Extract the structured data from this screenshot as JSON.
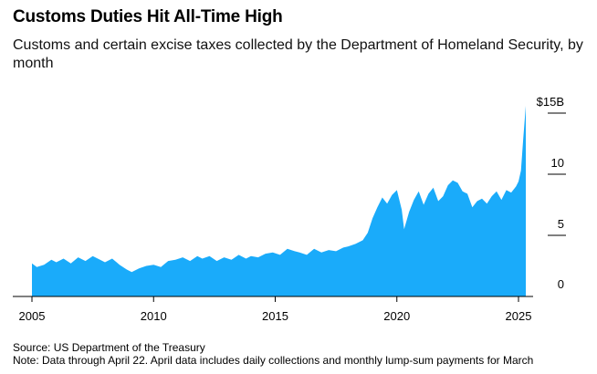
{
  "header": {
    "title": "Customs Duties Hit All-Time High",
    "subtitle": "Customs and certain excise taxes collected by the Department of Homeland Security, by month"
  },
  "footer": {
    "source": "Source: US Department of the Treasury",
    "note": "Note: Data through April 22. April data includes daily collections and monthly lump-sum payments for March"
  },
  "colors": {
    "area": "#1aabfa",
    "axis": "#000000",
    "tick": "#000000"
  },
  "chart_data": {
    "type": "area",
    "title": "Customs Duties Hit All-Time High",
    "subtitle": "Customs and certain excise taxes collected by the Department of Homeland Security, by month",
    "xlabel": "",
    "ylabel": "",
    "x_tick_labels": [
      "2005",
      "2010",
      "2015",
      "2020",
      "2025"
    ],
    "y_tick_labels": [
      "0",
      "5",
      "10",
      "$15B"
    ],
    "y_ticks": [
      0,
      5,
      10,
      15
    ],
    "ylim": [
      0,
      15
    ],
    "xlim": [
      2005.0,
      2025.3
    ],
    "grid": false,
    "legend": "none",
    "series": [
      {
        "x": [
          2005.0,
          2005.2,
          2005.5,
          2005.8,
          2006.0,
          2006.3,
          2006.6,
          2006.9,
          2007.2,
          2007.5,
          2007.8,
          2008.0,
          2008.3,
          2008.6,
          2008.9,
          2009.1,
          2009.4,
          2009.7,
          2010.0,
          2010.3,
          2010.6,
          2010.9,
          2011.2,
          2011.5,
          2011.8,
          2012.0,
          2012.3,
          2012.6,
          2012.9,
          2013.2,
          2013.5,
          2013.8,
          2014.0,
          2014.3,
          2014.6,
          2014.9,
          2015.2,
          2015.5,
          2015.8,
          2016.0,
          2016.3,
          2016.6,
          2016.9,
          2017.2,
          2017.5,
          2017.8,
          2018.0,
          2018.3,
          2018.6,
          2018.8,
          2019.0,
          2019.2,
          2019.4,
          2019.6,
          2019.8,
          2020.0,
          2020.2,
          2020.3,
          2020.5,
          2020.7,
          2020.9,
          2021.1,
          2021.3,
          2021.5,
          2021.7,
          2021.9,
          2022.1,
          2022.3,
          2022.5,
          2022.7,
          2022.9,
          2023.1,
          2023.3,
          2023.5,
          2023.7,
          2023.9,
          2024.1,
          2024.3,
          2024.5,
          2024.7,
          2024.9,
          2025.0,
          2025.1,
          2025.2,
          2025.3
        ],
        "values": [
          2.7,
          2.4,
          2.6,
          3.0,
          2.8,
          3.1,
          2.7,
          3.2,
          2.9,
          3.3,
          3.0,
          2.8,
          3.1,
          2.6,
          2.2,
          2.0,
          2.3,
          2.5,
          2.6,
          2.4,
          2.9,
          3.0,
          3.2,
          2.9,
          3.3,
          3.1,
          3.3,
          2.9,
          3.2,
          3.0,
          3.4,
          3.1,
          3.3,
          3.2,
          3.5,
          3.6,
          3.4,
          3.9,
          3.7,
          3.6,
          3.4,
          3.9,
          3.6,
          3.8,
          3.7,
          4.0,
          4.1,
          4.3,
          4.6,
          5.2,
          6.4,
          7.3,
          8.1,
          7.6,
          8.3,
          8.7,
          7.1,
          5.5,
          6.9,
          7.9,
          8.6,
          7.5,
          8.4,
          8.9,
          7.8,
          8.2,
          9.1,
          9.5,
          9.3,
          8.6,
          8.4,
          7.3,
          7.8,
          8.0,
          7.6,
          8.2,
          8.6,
          7.9,
          8.7,
          8.5,
          9.0,
          9.4,
          10.3,
          13.0,
          15.6
        ]
      }
    ]
  }
}
